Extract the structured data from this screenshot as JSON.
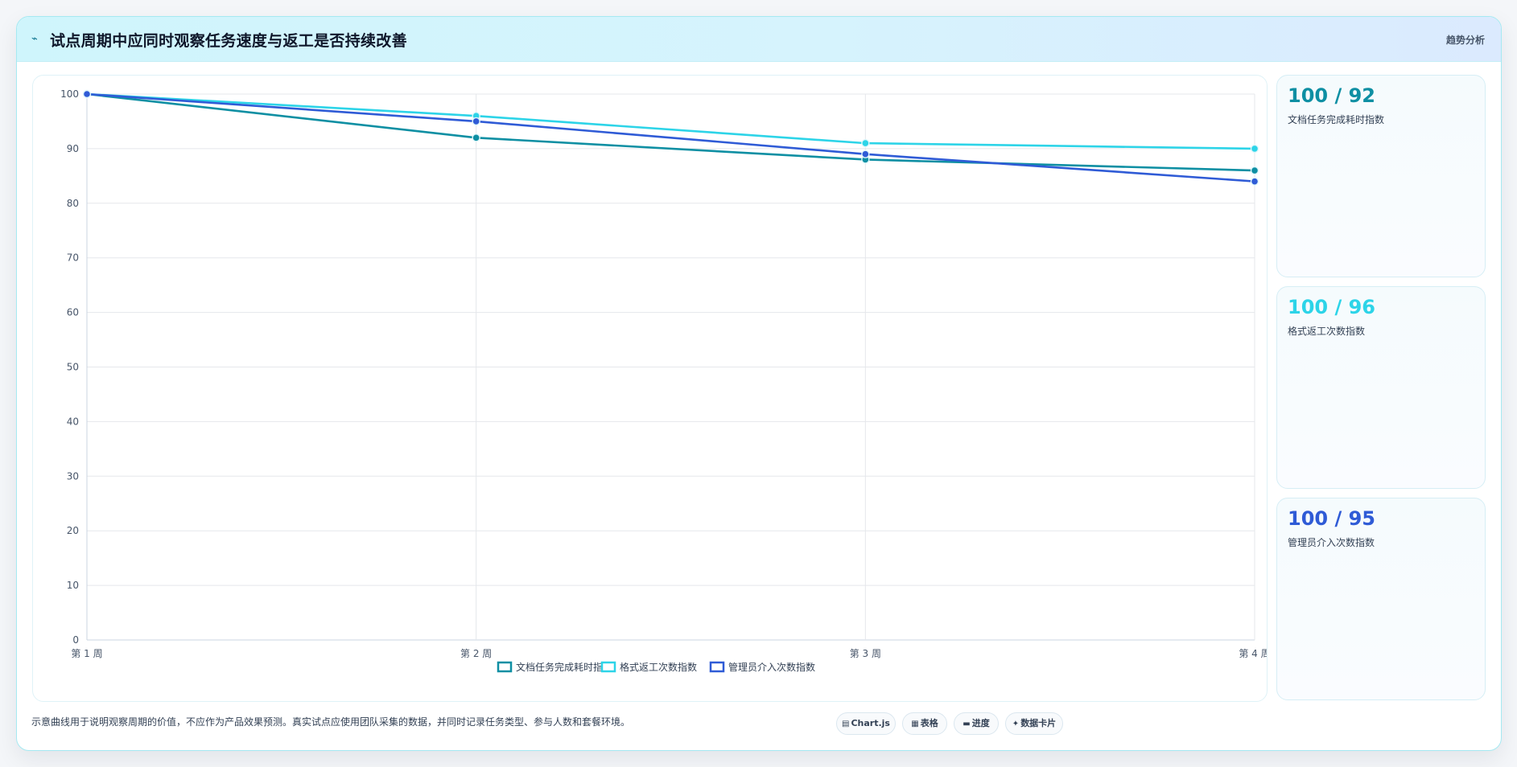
{
  "header": {
    "icon": "chart-line-icon",
    "title": "试点周期中应同时观察任务速度与返工是否持续改善",
    "tag": "趋势分析"
  },
  "colors": {
    "series1": "#0e8fa3",
    "series2": "#2dd4e8",
    "series3": "#2f5bd6"
  },
  "chart_data": {
    "type": "line",
    "categories": [
      "第 1 周",
      "第 2 周",
      "第 3 周",
      "第 4 周"
    ],
    "series": [
      {
        "name": "文档任务完成耗时指数",
        "values": [
          100,
          92,
          88,
          86
        ]
      },
      {
        "name": "格式返工次数指数",
        "values": [
          100,
          96,
          91,
          90
        ]
      },
      {
        "name": "管理员介入次数指数",
        "values": [
          100,
          95,
          89,
          84
        ]
      }
    ],
    "ylim": [
      0,
      100
    ],
    "yticks": [
      0,
      10,
      20,
      30,
      40,
      50,
      60,
      70,
      80,
      90,
      100
    ],
    "grid": true,
    "legend": "bottom"
  },
  "stats": [
    {
      "value": "100 / 92",
      "label": "文档任务完成耗时指数"
    },
    {
      "value": "100 / 96",
      "label": "格式返工次数指数"
    },
    {
      "value": "100 / 95",
      "label": "管理员介入次数指数"
    }
  ],
  "footer": {
    "note": "示意曲线用于说明观察周期的价值，不应作为产品效果预测。真实试点应使用团队采集的数据，并同时记录任务类型、参与人数和套餐环境。",
    "chips": [
      {
        "icon": "chart-icon",
        "glyph": "▤",
        "label": "Chart.js"
      },
      {
        "icon": "table-icon",
        "glyph": "▦",
        "label": "表格"
      },
      {
        "icon": "progress-icon",
        "glyph": "▬",
        "label": "进度"
      },
      {
        "icon": "card-icon",
        "glyph": "✦",
        "label": "数据卡片"
      }
    ]
  }
}
